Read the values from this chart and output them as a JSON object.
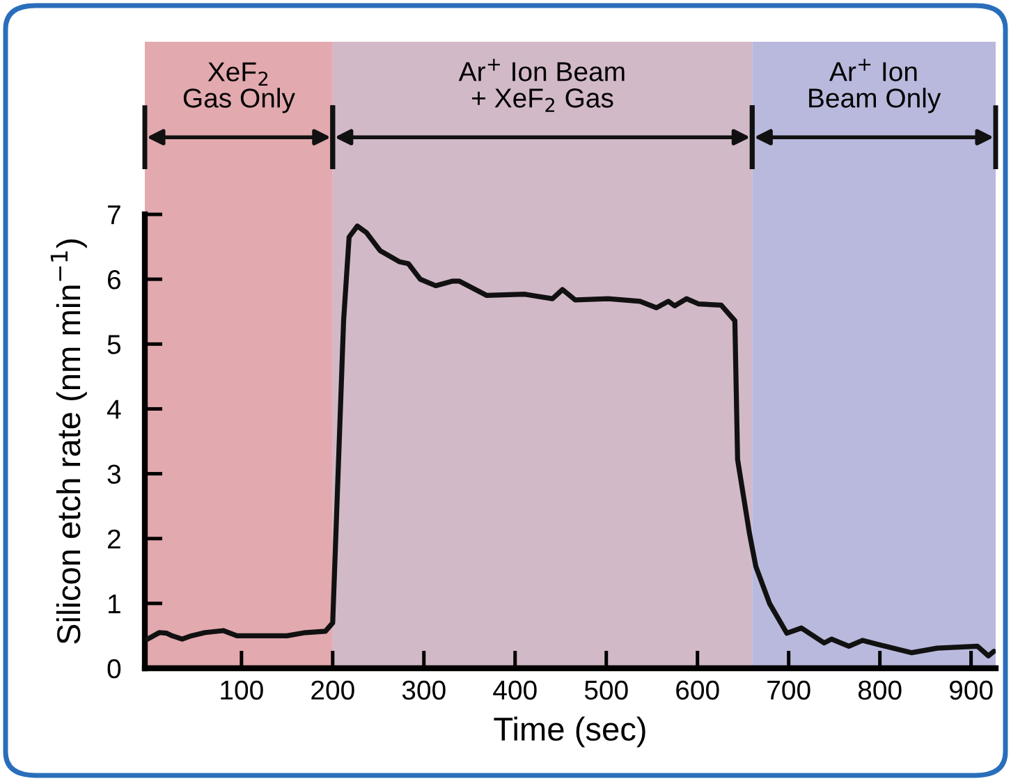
{
  "chart_data": {
    "type": "line",
    "xlabel": "Time (sec)",
    "ylabel": "Silicon etch rate (nm min$^{−1}$)",
    "x": [
      -3,
      10,
      18,
      24,
      35,
      45,
      60,
      80,
      95,
      120,
      150,
      170,
      192,
      200,
      212,
      218,
      227,
      237,
      252,
      273,
      283,
      296,
      313,
      331,
      339,
      369,
      410,
      441,
      452,
      466,
      502,
      537,
      555,
      568,
      575,
      588,
      601,
      626,
      641,
      644,
      657,
      664,
      679,
      698,
      714,
      739,
      747,
      766,
      781,
      800,
      835,
      863,
      907,
      919,
      925
    ],
    "series": [
      {
        "color": "#111111",
        "values": [
          0.45,
          0.55,
          0.54,
          0.5,
          0.45,
          0.5,
          0.55,
          0.58,
          0.5,
          0.5,
          0.5,
          0.55,
          0.57,
          0.7,
          5.37,
          6.65,
          6.82,
          6.72,
          6.44,
          6.27,
          6.24,
          6.0,
          5.9,
          5.97,
          5.97,
          5.75,
          5.77,
          5.7,
          5.84,
          5.68,
          5.7,
          5.66,
          5.56,
          5.66,
          5.59,
          5.7,
          5.62,
          5.6,
          5.36,
          3.22,
          2.08,
          1.57,
          1.0,
          0.54,
          0.62,
          0.39,
          0.45,
          0.34,
          0.43,
          0.36,
          0.24,
          0.31,
          0.34,
          0.19,
          0.26
        ]
      }
    ],
    "xlim": [
      -6,
      927
    ],
    "ylim": [
      0,
      7
    ],
    "xticks": [
      100,
      200,
      300,
      400,
      500,
      600,
      700,
      800,
      900
    ],
    "yticks": [
      0,
      1,
      2,
      3,
      4,
      5,
      6,
      7
    ],
    "grid": false,
    "marker": "none",
    "line_style": "solid",
    "bands": [
      {
        "axis": "x",
        "from": -6,
        "to": 200,
        "label": "XeF$_{2}$\nGas Only",
        "color": "#e2a9ae"
      },
      {
        "axis": "x",
        "from": 200,
        "to": 660,
        "label": "Ar$^{+}$ Ion Beam\n+ XeF$_{2}$ Gas",
        "color": "#d2b9c8"
      },
      {
        "axis": "x",
        "from": 660,
        "to": 927,
        "label": "Ar$^{+}$ Ion\nBeam Only",
        "color": "#b9b9dd"
      }
    ]
  }
}
